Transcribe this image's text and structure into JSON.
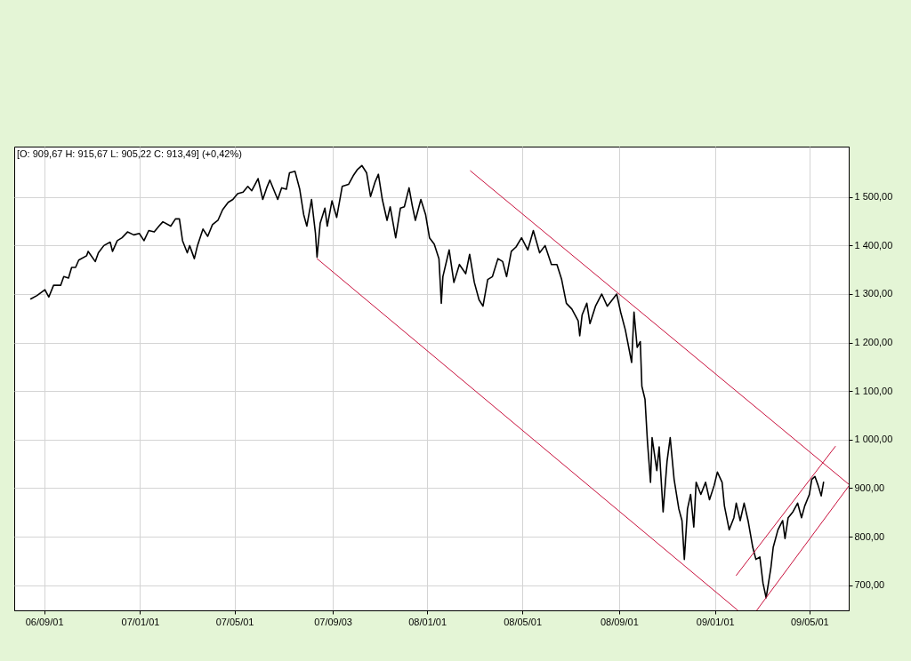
{
  "chart_data": {
    "type": "line",
    "annotations": [
      "[O: 909,67 H: 915,67 L: 905,22 C: 913,49] (+0,42%)"
    ],
    "xlim": [
      "2006-07-25",
      "2009-06-20"
    ],
    "xticks": [
      {
        "value": "2006-09-01",
        "label": "06/09/01"
      },
      {
        "value": "2007-01-01",
        "label": "07/01/01"
      },
      {
        "value": "2007-05-01",
        "label": "07/05/01"
      },
      {
        "value": "2007-09-03",
        "label": "07/09/03"
      },
      {
        "value": "2008-01-01",
        "label": "08/01/01"
      },
      {
        "value": "2008-05-01",
        "label": "08/05/01"
      },
      {
        "value": "2008-09-01",
        "label": "08/09/01"
      },
      {
        "value": "2009-01-01",
        "label": "09/01/01"
      },
      {
        "value": "2009-05-01",
        "label": "09/05/01"
      }
    ],
    "ylim": [
      648,
      1604
    ],
    "yticks": [
      {
        "value": 700,
        "label": "700,00"
      },
      {
        "value": 800,
        "label": "800,00"
      },
      {
        "value": 900,
        "label": "900,00"
      },
      {
        "value": 1000,
        "label": "1 000,00"
      },
      {
        "value": 1100,
        "label": "1 100,00"
      },
      {
        "value": 1200,
        "label": "1 200,00"
      },
      {
        "value": 1300,
        "label": "1 300,00"
      },
      {
        "value": 1400,
        "label": "1 400,00"
      },
      {
        "value": 1500,
        "label": "1 500,00"
      }
    ],
    "grid": true,
    "series": [
      {
        "color": "#000000",
        "x": [
          "2006-08-15",
          "2006-08-23",
          "2006-09-02",
          "2006-09-07",
          "2006-09-13",
          "2006-09-22",
          "2006-09-26",
          "2006-10-02",
          "2006-10-06",
          "2006-10-11",
          "2006-10-15",
          "2006-10-25",
          "2006-10-27",
          "2006-11-05",
          "2006-11-09",
          "2006-11-16",
          "2006-11-24",
          "2006-11-27",
          "2006-12-03",
          "2006-12-09",
          "2006-12-16",
          "2006-12-24",
          "2006-12-31",
          "2007-01-06",
          "2007-01-12",
          "2007-01-19",
          "2007-01-25",
          "2007-01-30",
          "2007-02-09",
          "2007-02-15",
          "2007-02-20",
          "2007-02-24",
          "2007-03-02",
          "2007-03-05",
          "2007-03-11",
          "2007-03-15",
          "2007-03-22",
          "2007-03-28",
          "2007-04-03",
          "2007-04-10",
          "2007-04-16",
          "2007-04-23",
          "2007-04-29",
          "2007-05-05",
          "2007-05-12",
          "2007-05-18",
          "2007-05-23",
          "2007-05-31",
          "2007-06-06",
          "2007-06-11",
          "2007-06-15",
          "2007-06-25",
          "2007-06-30",
          "2007-07-06",
          "2007-07-10",
          "2007-07-17",
          "2007-07-23",
          "2007-07-28",
          "2007-08-01",
          "2007-08-07",
          "2007-08-12",
          "2007-08-14",
          "2007-08-18",
          "2007-08-24",
          "2007-08-27",
          "2007-09-02",
          "2007-09-08",
          "2007-09-15",
          "2007-09-23",
          "2007-09-29",
          "2007-10-04",
          "2007-10-10",
          "2007-10-16",
          "2007-10-21",
          "2007-10-27",
          "2007-10-31",
          "2007-11-05",
          "2007-11-11",
          "2007-11-15",
          "2007-11-22",
          "2007-11-28",
          "2007-12-03",
          "2007-12-09",
          "2007-12-13",
          "2007-12-17",
          "2007-12-24",
          "2007-12-30",
          "2008-01-04",
          "2008-01-10",
          "2008-01-16",
          "2008-01-19",
          "2008-01-21",
          "2008-01-29",
          "2008-02-04",
          "2008-02-11",
          "2008-02-19",
          "2008-02-24",
          "2008-03-01",
          "2008-03-07",
          "2008-03-12",
          "2008-03-18",
          "2008-03-24",
          "2008-03-31",
          "2008-04-06",
          "2008-04-11",
          "2008-04-17",
          "2008-04-23",
          "2008-04-30",
          "2008-05-08",
          "2008-05-15",
          "2008-05-23",
          "2008-05-30",
          "2008-06-07",
          "2008-06-14",
          "2008-06-20",
          "2008-06-26",
          "2008-07-03",
          "2008-07-11",
          "2008-07-13",
          "2008-07-16",
          "2008-07-22",
          "2008-07-26",
          "2008-08-02",
          "2008-08-10",
          "2008-08-17",
          "2008-08-29",
          "2008-09-03",
          "2008-09-09",
          "2008-09-17",
          "2008-09-20",
          "2008-09-24",
          "2008-09-28",
          "2008-09-30",
          "2008-10-04",
          "2008-10-07",
          "2008-10-11",
          "2008-10-13",
          "2008-10-19",
          "2008-10-22",
          "2008-10-27",
          "2008-11-01",
          "2008-11-05",
          "2008-11-10",
          "2008-11-16",
          "2008-11-20",
          "2008-11-23",
          "2008-11-27",
          "2008-12-01",
          "2008-12-05",
          "2008-12-08",
          "2008-12-14",
          "2008-12-20",
          "2008-12-25",
          "2008-12-31",
          "2009-01-04",
          "2009-01-10",
          "2009-01-13",
          "2009-01-19",
          "2009-01-25",
          "2009-01-28",
          "2009-02-02",
          "2009-02-07",
          "2009-02-12",
          "2009-02-18",
          "2009-02-22",
          "2009-02-27",
          "2009-03-03",
          "2009-03-07",
          "2009-03-13",
          "2009-03-16",
          "2009-03-22",
          "2009-03-28",
          "2009-03-31",
          "2009-04-04",
          "2009-04-10",
          "2009-04-16",
          "2009-04-21",
          "2009-04-25",
          "2009-05-01",
          "2009-05-04",
          "2009-05-08",
          "2009-05-12",
          "2009-05-16",
          "2009-05-19"
        ],
        "values": [
          1290,
          1297,
          1309,
          1294,
          1318,
          1318,
          1336,
          1333,
          1355,
          1355,
          1370,
          1379,
          1388,
          1367,
          1385,
          1400,
          1407,
          1388,
          1410,
          1416,
          1428,
          1422,
          1425,
          1410,
          1431,
          1428,
          1440,
          1449,
          1440,
          1455,
          1455,
          1410,
          1385,
          1400,
          1373,
          1400,
          1434,
          1419,
          1443,
          1452,
          1474,
          1489,
          1495,
          1507,
          1510,
          1522,
          1513,
          1538,
          1495,
          1519,
          1535,
          1495,
          1519,
          1516,
          1550,
          1553,
          1516,
          1464,
          1440,
          1495,
          1425,
          1376,
          1446,
          1477,
          1440,
          1492,
          1458,
          1522,
          1526,
          1544,
          1556,
          1565,
          1550,
          1501,
          1532,
          1547,
          1495,
          1452,
          1480,
          1416,
          1477,
          1480,
          1519,
          1483,
          1452,
          1495,
          1464,
          1416,
          1403,
          1373,
          1281,
          1336,
          1391,
          1324,
          1361,
          1342,
          1382,
          1324,
          1288,
          1275,
          1330,
          1336,
          1373,
          1367,
          1336,
          1388,
          1397,
          1416,
          1391,
          1431,
          1385,
          1400,
          1361,
          1361,
          1330,
          1281,
          1269,
          1245,
          1214,
          1257,
          1281,
          1239,
          1275,
          1300,
          1275,
          1300,
          1263,
          1226,
          1159,
          1263,
          1190,
          1202,
          1110,
          1083,
          998,
          912,
          1004,
          936,
          985,
          851,
          955,
          1004,
          918,
          857,
          833,
          753,
          857,
          887,
          820,
          912,
          887,
          912,
          876,
          906,
          933,
          912,
          863,
          814,
          839,
          869,
          833,
          869,
          833,
          778,
          753,
          758,
          704,
          674,
          735,
          778,
          814,
          833,
          796,
          839,
          851,
          869,
          839,
          863,
          887,
          918,
          924,
          906,
          884,
          912
        ]
      },
      {
        "color": "#c8103c",
        "x": [
          "2008-02-25",
          "2009-06-20"
        ],
        "values": [
          1554,
          908
        ]
      },
      {
        "color": "#c8103c",
        "x": [
          "2007-08-14",
          "2009-01-30"
        ],
        "values": [
          1373,
          648
        ]
      },
      {
        "color": "#c8103c",
        "x": [
          "2009-01-28",
          "2009-06-03"
        ],
        "values": [
          720,
          986
        ]
      },
      {
        "color": "#c8103c",
        "x": [
          "2009-02-23",
          "2009-06-20"
        ],
        "values": [
          648,
          904
        ]
      }
    ]
  }
}
